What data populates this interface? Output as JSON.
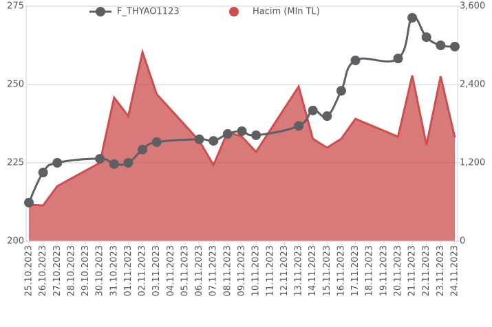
{
  "chart_data": {
    "type": "line",
    "legend": "top",
    "grid": true,
    "xticks": [
      "25.10.2023",
      "26.10.2023",
      "27.10.2023",
      "28.10.2023",
      "29.10.2023",
      "30.10.2023",
      "31.10.2023",
      "01.11.2023",
      "02.11.2023",
      "03.11.2023",
      "04.11.2023",
      "05.11.2023",
      "06.11.2023",
      "07.11.2023",
      "08.11.2023",
      "09.11.2023",
      "10.11.2023",
      "11.11.2023",
      "12.11.2023",
      "13.11.2023",
      "14.11.2023",
      "15.11.2023",
      "16.11.2023",
      "17.11.2023",
      "18.11.2023",
      "19.11.2023",
      "20.11.2023",
      "21.11.2023",
      "22.11.2023",
      "23.11.2023",
      "24.11.2023"
    ],
    "x": [
      "25.10.2023",
      "26.10.2023",
      "27.10.2023",
      "30.10.2023",
      "31.10.2023",
      "01.11.2023",
      "02.11.2023",
      "03.11.2023",
      "06.11.2023",
      "07.11.2023",
      "08.11.2023",
      "09.11.2023",
      "10.11.2023",
      "13.11.2023",
      "14.11.2023",
      "15.11.2023",
      "16.11.2023",
      "17.11.2023",
      "20.11.2023",
      "21.11.2023",
      "22.11.2023",
      "23.11.2023",
      "24.11.2023"
    ],
    "ylim": [
      200,
      275
    ],
    "yticks": [
      200,
      225,
      250,
      275
    ],
    "y2lim": [
      0,
      3600
    ],
    "y2ticks": [
      0,
      {
        "value": 1200,
        "label": "1,200"
      },
      {
        "value": 2400,
        "label": "2,400"
      },
      {
        "value": 3600,
        "label": "3,600"
      }
    ],
    "series": [
      {
        "name": "F_THYAO1123",
        "color": "#5f5f63",
        "type": "line",
        "values": [
          212.3,
          221.9,
          225,
          226.3,
          224.6,
          225,
          229.2,
          231.6,
          232.5,
          232,
          234.2,
          235.1,
          233.8,
          236.8,
          241.7,
          239.9,
          248,
          257.7,
          258.3,
          271.3,
          265.1,
          262.5,
          262.1
        ]
      },
      {
        "name": "Hacim (Mln TL)",
        "color": "#cc4e4e",
        "type": "area",
        "axis": "y2",
        "values": [
          558,
          547,
          842,
          1200,
          2200,
          1916,
          2895,
          2253,
          1537,
          1168,
          1674,
          1600,
          1368,
          2368,
          1568,
          1432,
          1568,
          1874,
          1600,
          2537,
          1474,
          2526,
          1589
        ]
      }
    ]
  }
}
